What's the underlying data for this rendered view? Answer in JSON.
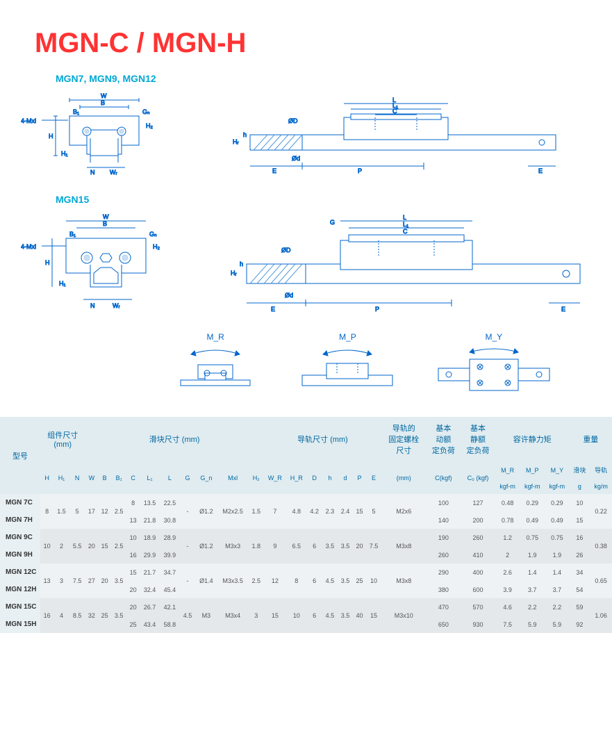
{
  "title": "MGN-C / MGN-H",
  "subtitle1": "MGN7, MGN9, MGN12",
  "subtitle2": "MGN15",
  "diagram_labels": {
    "cross1": [
      "4-Mxl",
      "W",
      "B",
      "B₁",
      "G_n",
      "H",
      "H₁",
      "H₂",
      "N",
      "W_R"
    ],
    "side1": [
      "ØD",
      "Ød",
      "H_R",
      "h",
      "L",
      "L₁",
      "C",
      "E",
      "P",
      "E"
    ],
    "cross2": [
      "4-Mxl",
      "W",
      "B",
      "B₁",
      "G_n",
      "H",
      "H₁",
      "H₂",
      "N",
      "W_R"
    ],
    "side2": [
      "ØD",
      "Ød",
      "H_R",
      "h",
      "G",
      "L",
      "L₁",
      "C",
      "E",
      "P",
      "E"
    ]
  },
  "moments": {
    "mr": "M_R",
    "mp": "M_P",
    "my": "M_Y"
  },
  "colors": {
    "title": "#ff3333",
    "subtitle": "#00a8d6",
    "diagram_line": "#0066cc",
    "diagram_fill": "#ffffff",
    "hatch": "#5599dd",
    "header_bg": "#e0ecf0",
    "header_text": "#0066a0",
    "row_odd": "#eef2f4",
    "row_even": "#e4e8ea",
    "model_bg": "#e8f0f4"
  },
  "table": {
    "group_headers": [
      {
        "label": "型号",
        "span": 1
      },
      {
        "label": "组件尺寸\n(mm)",
        "span": 3
      },
      {
        "label": "滑块尺寸 (mm)",
        "span": 10
      },
      {
        "label": "导轨尺寸 (mm)",
        "span": 7
      },
      {
        "label": "导轨的\n固定螺栓\n尺寸",
        "span": 1
      },
      {
        "label": "基本\n动额\n定负荷",
        "span": 1
      },
      {
        "label": "基本\n静额\n定负荷",
        "span": 1
      },
      {
        "label": "容许静力矩",
        "span": 3
      },
      {
        "label": "重量",
        "span": 2
      }
    ],
    "sub_headers": [
      "H",
      "H₁",
      "N",
      "W",
      "B",
      "B₁",
      "C",
      "L₁",
      "L",
      "G",
      "G_n",
      "Mxl",
      "H₂",
      "W_R",
      "H_R",
      "D",
      "h",
      "d",
      "P",
      "E",
      "(mm)",
      "C(kgf)",
      "C₀ (kgf)",
      "M_R",
      "M_P",
      "M_Y",
      "滑块",
      "导轨"
    ],
    "sub_units": [
      "",
      "",
      "",
      "",
      "",
      "",
      "",
      "",
      "",
      "",
      "",
      "",
      "",
      "",
      "",
      "",
      "",
      "",
      "",
      "",
      "",
      "",
      "",
      "kgf-m",
      "kgf-m",
      "kgf-m",
      "g",
      "kg/m"
    ],
    "rows": [
      {
        "model": "MGN 7C",
        "cells": [
          "8",
          "1.5",
          "5",
          "17",
          "12",
          "2.5",
          "8",
          "13.5",
          "22.5",
          "-",
          "Ø1.2",
          "M2x2.5",
          "1.5",
          "7",
          "4.8",
          "4.2",
          "2.3",
          "2.4",
          "15",
          "5",
          "M2x6",
          "100",
          "127",
          "0.48",
          "0.29",
          "0.29",
          "10",
          "0.22"
        ]
      },
      {
        "model": "MGN 7H",
        "cells": [
          "",
          "",
          "",
          "",
          "",
          "",
          "13",
          "21.8",
          "30.8",
          "",
          "",
          "",
          "",
          "",
          "",
          "",
          "",
          "",
          "",
          "",
          "",
          "140",
          "200",
          "0.78",
          "0.49",
          "0.49",
          "15",
          ""
        ]
      },
      {
        "model": "MGN 9C",
        "cells": [
          "10",
          "2",
          "5.5",
          "20",
          "15",
          "2.5",
          "10",
          "18.9",
          "28.9",
          "-",
          "Ø1.2",
          "M3x3",
          "1.8",
          "9",
          "6.5",
          "6",
          "3.5",
          "3.5",
          "20",
          "7.5",
          "M3x8",
          "190",
          "260",
          "1.2",
          "0.75",
          "0.75",
          "16",
          "0.38"
        ]
      },
      {
        "model": "MGN 9H",
        "cells": [
          "",
          "",
          "",
          "",
          "",
          "",
          "16",
          "29.9",
          "39.9",
          "",
          "",
          "",
          "",
          "",
          "",
          "",
          "",
          "",
          "",
          "",
          "",
          "260",
          "410",
          "2",
          "1.9",
          "1.9",
          "26",
          ""
        ]
      },
      {
        "model": "MGN 12C",
        "cells": [
          "13",
          "3",
          "7.5",
          "27",
          "20",
          "3.5",
          "15",
          "21.7",
          "34.7",
          "-",
          "Ø1.4",
          "M3x3.5",
          "2.5",
          "12",
          "8",
          "6",
          "4.5",
          "3.5",
          "25",
          "10",
          "M3x8",
          "290",
          "400",
          "2.6",
          "1.4",
          "1.4",
          "34",
          "0.65"
        ]
      },
      {
        "model": "MGN 12H",
        "cells": [
          "",
          "",
          "",
          "",
          "",
          "",
          "20",
          "32.4",
          "45.4",
          "",
          "",
          "",
          "",
          "",
          "",
          "",
          "",
          "",
          "",
          "",
          "",
          "380",
          "600",
          "3.9",
          "3.7",
          "3.7",
          "54",
          ""
        ]
      },
      {
        "model": "MGN 15C",
        "cells": [
          "16",
          "4",
          "8.5",
          "32",
          "25",
          "3.5",
          "20",
          "26.7",
          "42.1",
          "4.5",
          "M3",
          "M3x4",
          "3",
          "15",
          "10",
          "6",
          "4.5",
          "3.5",
          "40",
          "15",
          "M3x10",
          "470",
          "570",
          "4.6",
          "2.2",
          "2.2",
          "59",
          "1.06"
        ]
      },
      {
        "model": "MGN 15H",
        "cells": [
          "",
          "",
          "",
          "",
          "",
          "",
          "25",
          "43.4",
          "58.8",
          "",
          "",
          "",
          "",
          "",
          "",
          "",
          "",
          "",
          "",
          "",
          "",
          "650",
          "930",
          "7.5",
          "5.9",
          "5.9",
          "92",
          ""
        ]
      }
    ]
  }
}
